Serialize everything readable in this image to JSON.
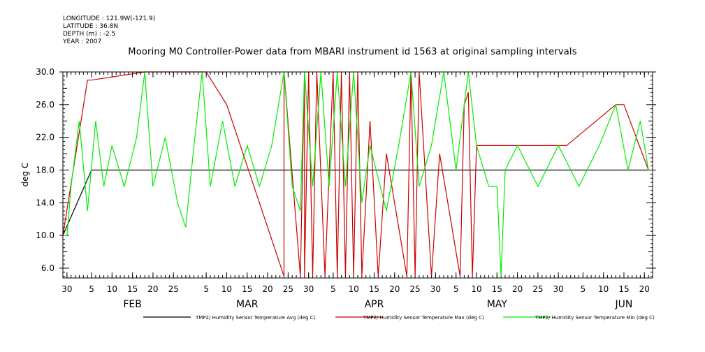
{
  "header": {
    "lines": [
      "LONGITUDE : 121.9W(-121.9)",
      "LATITUDE : 36.8N",
      "DEPTH (m) : -2.5",
      "YEAR : 2007"
    ],
    "title": "Mooring M0 Controller-Power data from MBARI instrument id 1563 at original sampling intervals"
  },
  "chart_data": {
    "type": "line",
    "title": "Mooring M0 Controller-Power data from MBARI instrument id 1563 at original sampling intervals",
    "ylabel": "deg C",
    "xlabel": "",
    "ylim": [
      4.8,
      30.0
    ],
    "xlim": [
      "2007-01-29",
      "2007-06-22"
    ],
    "y_ticks": [
      6.0,
      10.0,
      14.0,
      18.0,
      22.0,
      26.0,
      30.0
    ],
    "y_tick_labels": [
      "6.0",
      "10.0",
      "14.0",
      "18.0",
      "22.0",
      "26.0",
      "30.0"
    ],
    "x_day_ticks": [
      {
        "date": "2007-01-30",
        "label": "30"
      },
      {
        "date": "2007-02-05",
        "label": "5"
      },
      {
        "date": "2007-02-10",
        "label": "10"
      },
      {
        "date": "2007-02-15",
        "label": "15"
      },
      {
        "date": "2007-02-20",
        "label": "20"
      },
      {
        "date": "2007-02-25",
        "label": "25"
      },
      {
        "date": "2007-03-05",
        "label": "5"
      },
      {
        "date": "2007-03-10",
        "label": "10"
      },
      {
        "date": "2007-03-15",
        "label": "15"
      },
      {
        "date": "2007-03-20",
        "label": "20"
      },
      {
        "date": "2007-03-25",
        "label": "25"
      },
      {
        "date": "2007-03-30",
        "label": "30"
      },
      {
        "date": "2007-04-05",
        "label": "5"
      },
      {
        "date": "2007-04-10",
        "label": "10"
      },
      {
        "date": "2007-04-15",
        "label": "15"
      },
      {
        "date": "2007-04-20",
        "label": "20"
      },
      {
        "date": "2007-04-25",
        "label": "25"
      },
      {
        "date": "2007-04-30",
        "label": "30"
      },
      {
        "date": "2007-05-05",
        "label": "5"
      },
      {
        "date": "2007-05-10",
        "label": "10"
      },
      {
        "date": "2007-05-15",
        "label": "15"
      },
      {
        "date": "2007-05-20",
        "label": "20"
      },
      {
        "date": "2007-05-25",
        "label": "25"
      },
      {
        "date": "2007-05-30",
        "label": "30"
      },
      {
        "date": "2007-06-05",
        "label": "5"
      },
      {
        "date": "2007-06-10",
        "label": "10"
      },
      {
        "date": "2007-06-15",
        "label": "15"
      },
      {
        "date": "2007-06-20",
        "label": "20"
      }
    ],
    "x_month_labels": [
      {
        "date": "2007-02-15",
        "label": "FEB"
      },
      {
        "date": "2007-03-15",
        "label": "MAR"
      },
      {
        "date": "2007-04-15",
        "label": "APR"
      },
      {
        "date": "2007-05-15",
        "label": "MAY"
      },
      {
        "date": "2007-06-15",
        "label": "JUN"
      }
    ],
    "series": [
      {
        "name": "TMP2/ Humidity Sensor Temperature Avg (deg C)",
        "color": "#000000",
        "points": [
          [
            "2007-01-29",
            10.0
          ],
          [
            "2007-02-05",
            18.0
          ],
          [
            "2007-02-15",
            18.0
          ],
          [
            "2007-03-01",
            18.0
          ],
          [
            "2007-03-15",
            18.0
          ],
          [
            "2007-04-01",
            18.0
          ],
          [
            "2007-04-15",
            18.0
          ],
          [
            "2007-05-01",
            18.0
          ],
          [
            "2007-05-15",
            18.0
          ],
          [
            "2007-06-01",
            18.0
          ],
          [
            "2007-06-21",
            18.0
          ]
        ]
      },
      {
        "name": "TMP2/ Humidity Sensor Temperature Max (deg C)",
        "color": "#cc0000",
        "points": [
          [
            "2007-01-29",
            10.0
          ],
          [
            "2007-02-04",
            29.0
          ],
          [
            "2007-02-05",
            29.0
          ],
          [
            "2007-02-18",
            30.0
          ],
          [
            "2007-03-05",
            30.0
          ],
          [
            "2007-03-10",
            26.0
          ],
          [
            "2007-03-24",
            5.0
          ],
          [
            "2007-03-24",
            30.0
          ],
          [
            "2007-03-28",
            5.0
          ],
          [
            "2007-03-29",
            30.0
          ],
          [
            "2007-03-29",
            5.0
          ],
          [
            "2007-03-30",
            30.0
          ],
          [
            "2007-03-31",
            5.0
          ],
          [
            "2007-04-01",
            30.0
          ],
          [
            "2007-04-03",
            5.0
          ],
          [
            "2007-04-05",
            30.0
          ],
          [
            "2007-04-06",
            5.0
          ],
          [
            "2007-04-07",
            30.0
          ],
          [
            "2007-04-08",
            5.0
          ],
          [
            "2007-04-09",
            30.0
          ],
          [
            "2007-04-10",
            5.0
          ],
          [
            "2007-04-11",
            30.0
          ],
          [
            "2007-04-12",
            5.0
          ],
          [
            "2007-04-14",
            24.0
          ],
          [
            "2007-04-16",
            5.0
          ],
          [
            "2007-04-18",
            20.0
          ],
          [
            "2007-04-23",
            5.0
          ],
          [
            "2007-04-24",
            30.0
          ],
          [
            "2007-04-25",
            5.0
          ],
          [
            "2007-04-26",
            30.0
          ],
          [
            "2007-04-29",
            5.0
          ],
          [
            "2007-05-01",
            20.0
          ],
          [
            "2007-05-06",
            5.0
          ],
          [
            "2007-05-07",
            26.0
          ],
          [
            "2007-05-08",
            27.5
          ],
          [
            "2007-05-09",
            5.0
          ],
          [
            "2007-05-10",
            21.0
          ],
          [
            "2007-05-20",
            21.0
          ],
          [
            "2007-06-01",
            21.0
          ],
          [
            "2007-06-13",
            26.0
          ],
          [
            "2007-06-15",
            26.0
          ],
          [
            "2007-06-21",
            18.0
          ]
        ]
      },
      {
        "name": "TMP2/ Humidity Sensor Temperature Min (deg C)",
        "color": "#00ee00",
        "points": [
          [
            "2007-01-29",
            10.0
          ],
          [
            "2007-01-30",
            10.0
          ],
          [
            "2007-01-31",
            16.0
          ],
          [
            "2007-02-02",
            24.0
          ],
          [
            "2007-02-04",
            13.0
          ],
          [
            "2007-02-06",
            24.0
          ],
          [
            "2007-02-08",
            16.0
          ],
          [
            "2007-02-10",
            21.0
          ],
          [
            "2007-02-13",
            16.0
          ],
          [
            "2007-02-16",
            22.0
          ],
          [
            "2007-02-18",
            30.0
          ],
          [
            "2007-02-20",
            16.0
          ],
          [
            "2007-02-23",
            22.0
          ],
          [
            "2007-02-26",
            14.0
          ],
          [
            "2007-02-28",
            11.0
          ],
          [
            "2007-03-02",
            21.0
          ],
          [
            "2007-03-04",
            30.0
          ],
          [
            "2007-03-06",
            16.0
          ],
          [
            "2007-03-09",
            24.0
          ],
          [
            "2007-03-12",
            16.0
          ],
          [
            "2007-03-15",
            21.0
          ],
          [
            "2007-03-18",
            16.0
          ],
          [
            "2007-03-21",
            21.0
          ],
          [
            "2007-03-24",
            30.0
          ],
          [
            "2007-03-26",
            16.0
          ],
          [
            "2007-03-28",
            13.0
          ],
          [
            "2007-03-29",
            30.0
          ],
          [
            "2007-03-31",
            16.0
          ],
          [
            "2007-04-02",
            30.0
          ],
          [
            "2007-04-04",
            16.0
          ],
          [
            "2007-04-06",
            30.0
          ],
          [
            "2007-04-08",
            16.0
          ],
          [
            "2007-04-10",
            30.0
          ],
          [
            "2007-04-12",
            14.0
          ],
          [
            "2007-04-14",
            21.0
          ],
          [
            "2007-04-18",
            13.0
          ],
          [
            "2007-04-21",
            21.0
          ],
          [
            "2007-04-24",
            30.0
          ],
          [
            "2007-04-26",
            16.0
          ],
          [
            "2007-04-29",
            21.0
          ],
          [
            "2007-05-02",
            30.0
          ],
          [
            "2007-05-05",
            18.0
          ],
          [
            "2007-05-08",
            30.0
          ],
          [
            "2007-05-10",
            21.0
          ],
          [
            "2007-05-13",
            16.0
          ],
          [
            "2007-05-15",
            16.0
          ],
          [
            "2007-05-16",
            5.0
          ],
          [
            "2007-05-17",
            18.0
          ],
          [
            "2007-05-20",
            21.0
          ],
          [
            "2007-05-25",
            16.0
          ],
          [
            "2007-05-30",
            21.0
          ],
          [
            "2007-06-04",
            16.0
          ],
          [
            "2007-06-09",
            21.0
          ],
          [
            "2007-06-13",
            26.0
          ],
          [
            "2007-06-16",
            18.0
          ],
          [
            "2007-06-19",
            24.0
          ],
          [
            "2007-06-21",
            18.0
          ]
        ]
      }
    ],
    "legend_position": "bottom"
  }
}
